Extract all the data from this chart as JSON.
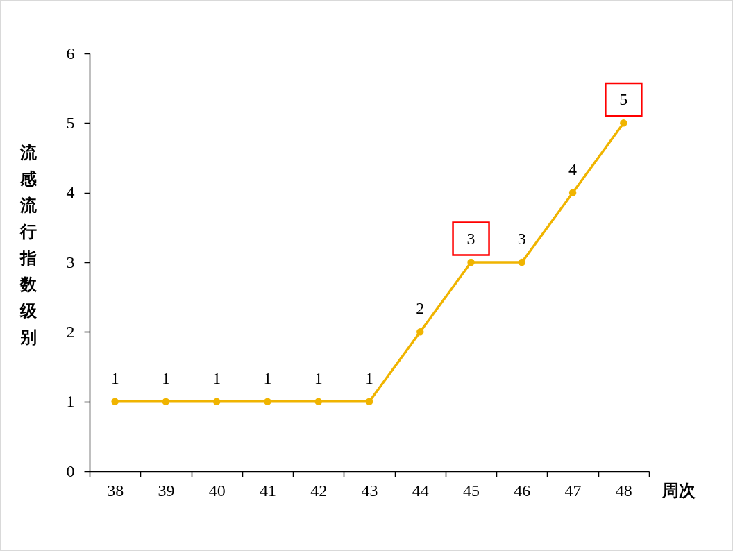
{
  "chart_data": {
    "type": "line",
    "categories": [
      "38",
      "39",
      "40",
      "41",
      "42",
      "43",
      "44",
      "45",
      "46",
      "47",
      "48"
    ],
    "values": [
      1,
      1,
      1,
      1,
      1,
      1,
      2,
      3,
      3,
      4,
      5
    ],
    "value_labels": [
      "1",
      "1",
      "1",
      "1",
      "1",
      "1",
      "2",
      null,
      "3",
      "4",
      null
    ],
    "annotations": [
      {
        "text": "3",
        "x": "45",
        "y": 3
      },
      {
        "text": "5",
        "x": "48",
        "y": 5
      }
    ],
    "color": "#f0b400",
    "xlabel": "周次",
    "ylabel": "流感流行指数级别",
    "ylim": [
      0,
      6
    ],
    "yticks": [
      0,
      1,
      2,
      3,
      4,
      5,
      6
    ],
    "marker": "circle",
    "line_style": "solid",
    "grid": false
  }
}
